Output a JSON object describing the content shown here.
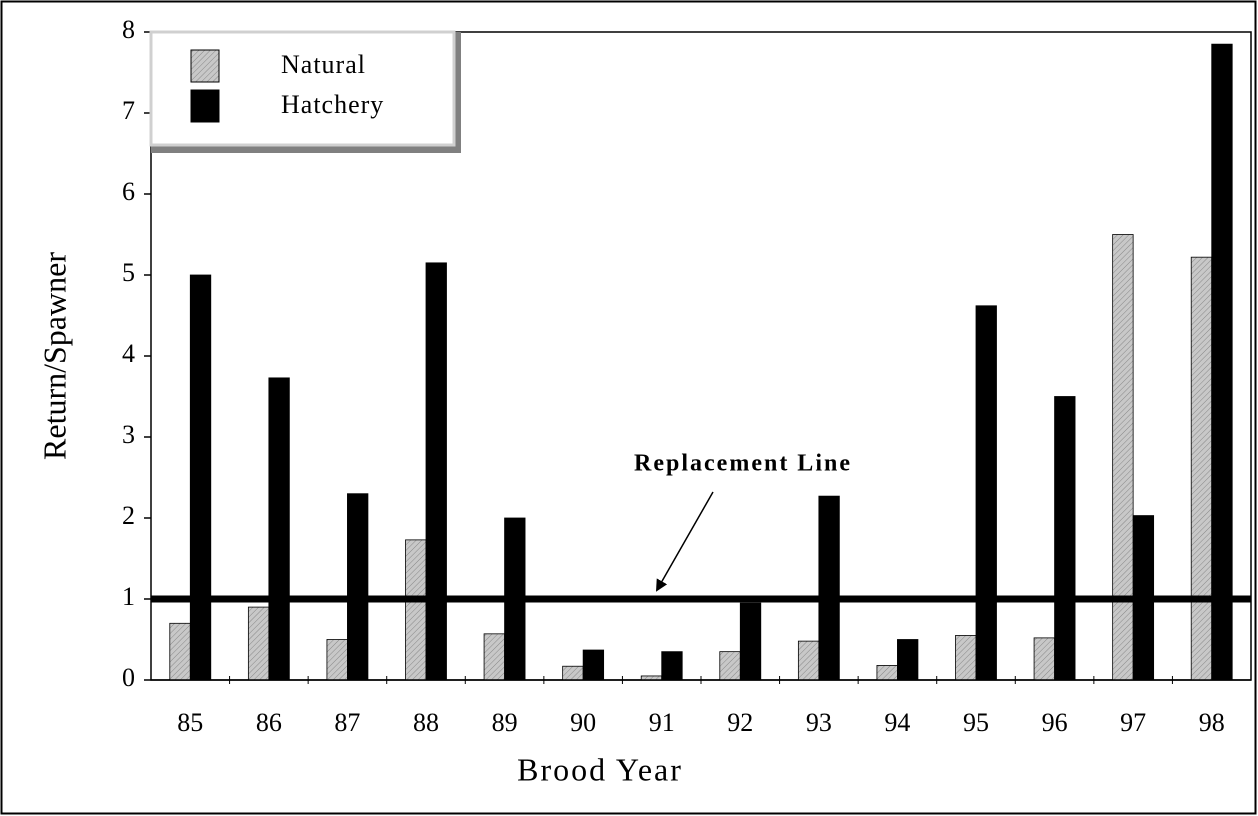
{
  "chart_data": {
    "type": "bar",
    "x_label": "Brood Year",
    "y_label": "Return/Spawner",
    "categories": [
      "85",
      "86",
      "87",
      "88",
      "89",
      "90",
      "91",
      "92",
      "93",
      "94",
      "95",
      "96",
      "97",
      "98"
    ],
    "series": [
      {
        "name": "Natural",
        "color": "#c8c8c8",
        "values": [
          0.7,
          0.9,
          0.5,
          1.73,
          0.57,
          0.17,
          0.05,
          0.35,
          0.48,
          0.18,
          0.55,
          0.52,
          5.5,
          5.22
        ]
      },
      {
        "name": "Hatchery",
        "color": "#000000",
        "values": [
          5.0,
          3.73,
          2.3,
          5.15,
          2.0,
          0.37,
          0.35,
          0.95,
          2.27,
          0.5,
          4.62,
          3.5,
          2.03,
          7.85
        ]
      }
    ],
    "reference_line": {
      "value": 1,
      "label": "Replacement Line"
    },
    "ylim": [
      0,
      8
    ],
    "yticks": [
      0,
      1,
      2,
      3,
      4,
      5,
      6,
      7,
      8
    ],
    "legend": "upper left"
  }
}
